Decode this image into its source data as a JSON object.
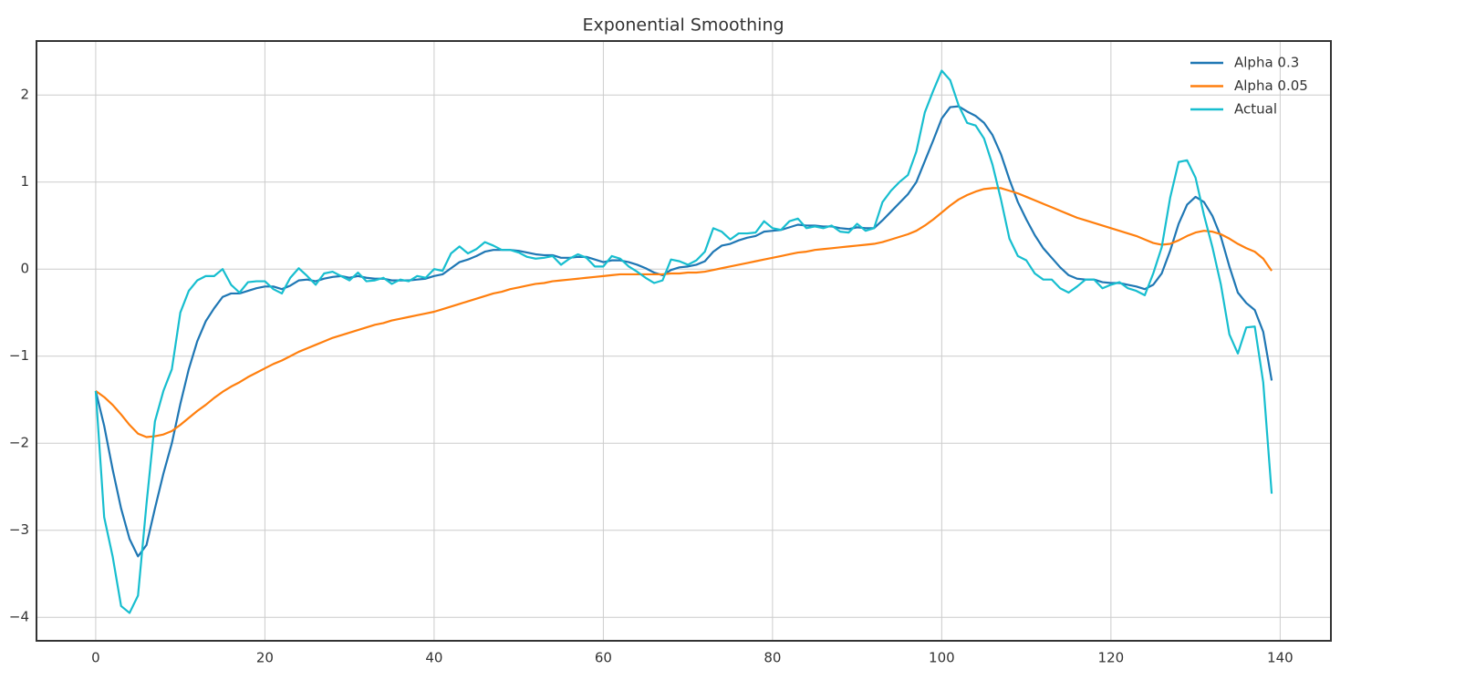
{
  "chart_data": {
    "type": "line",
    "title": "Exponential Smoothing",
    "x": [
      0,
      1,
      2,
      3,
      4,
      5,
      6,
      7,
      8,
      9,
      10,
      11,
      12,
      13,
      14,
      15,
      16,
      17,
      18,
      19,
      20,
      21,
      22,
      23,
      24,
      25,
      26,
      27,
      28,
      29,
      30,
      31,
      32,
      33,
      34,
      35,
      36,
      37,
      38,
      39,
      40,
      41,
      42,
      43,
      44,
      45,
      46,
      47,
      48,
      49,
      50,
      51,
      52,
      53,
      54,
      55,
      56,
      57,
      58,
      59,
      60,
      61,
      62,
      63,
      64,
      65,
      66,
      67,
      68,
      69,
      70,
      71,
      72,
      73,
      74,
      75,
      76,
      77,
      78,
      79,
      80,
      81,
      82,
      83,
      84,
      85,
      86,
      87,
      88,
      89,
      90,
      91,
      92,
      93,
      94,
      95,
      96,
      97,
      98,
      99,
      100,
      101,
      102,
      103,
      104,
      105,
      106,
      107,
      108,
      109,
      110,
      111,
      112,
      113,
      114,
      115,
      116,
      117,
      118,
      119,
      120,
      121,
      122,
      123,
      124,
      125,
      126,
      127,
      128,
      129,
      130,
      131,
      132,
      133,
      134,
      135,
      136,
      137,
      138,
      139
    ],
    "series": [
      {
        "name": "Alpha 0.3",
        "color": "#1f77b4",
        "values": [
          -1.4,
          -1.8,
          -2.3,
          -2.75,
          -3.1,
          -3.3,
          -3.17,
          -2.75,
          -2.35,
          -2.0,
          -1.55,
          -1.15,
          -0.83,
          -0.6,
          -0.45,
          -0.32,
          -0.28,
          -0.28,
          -0.25,
          -0.22,
          -0.2,
          -0.2,
          -0.23,
          -0.19,
          -0.13,
          -0.12,
          -0.14,
          -0.11,
          -0.09,
          -0.08,
          -0.1,
          -0.08,
          -0.1,
          -0.11,
          -0.11,
          -0.13,
          -0.13,
          -0.13,
          -0.12,
          -0.11,
          -0.08,
          -0.06,
          0.01,
          0.08,
          0.11,
          0.15,
          0.2,
          0.22,
          0.22,
          0.22,
          0.21,
          0.19,
          0.17,
          0.16,
          0.16,
          0.13,
          0.13,
          0.14,
          0.14,
          0.11,
          0.08,
          0.1,
          0.1,
          0.08,
          0.05,
          0.01,
          -0.04,
          -0.07,
          -0.01,
          0.02,
          0.03,
          0.05,
          0.09,
          0.2,
          0.27,
          0.29,
          0.33,
          0.36,
          0.38,
          0.43,
          0.44,
          0.45,
          0.48,
          0.51,
          0.5,
          0.5,
          0.49,
          0.49,
          0.47,
          0.46,
          0.48,
          0.47,
          0.47,
          0.56,
          0.66,
          0.76,
          0.86,
          1.0,
          1.24,
          1.48,
          1.73,
          1.86,
          1.87,
          1.81,
          1.76,
          1.68,
          1.54,
          1.32,
          1.03,
          0.77,
          0.57,
          0.39,
          0.24,
          0.13,
          0.02,
          -0.07,
          -0.11,
          -0.12,
          -0.12,
          -0.15,
          -0.16,
          -0.16,
          -0.18,
          -0.2,
          -0.23,
          -0.18,
          -0.05,
          0.21,
          0.52,
          0.74,
          0.83,
          0.77,
          0.61,
          0.37,
          0.03,
          -0.27,
          -0.39,
          -0.47,
          -0.72,
          -1.28
        ]
      },
      {
        "name": "Alpha 0.05",
        "color": "#ff7f0e",
        "values": [
          -1.4,
          -1.47,
          -1.56,
          -1.67,
          -1.79,
          -1.89,
          -1.93,
          -1.92,
          -1.9,
          -1.86,
          -1.79,
          -1.71,
          -1.63,
          -1.56,
          -1.48,
          -1.41,
          -1.35,
          -1.3,
          -1.24,
          -1.19,
          -1.14,
          -1.09,
          -1.05,
          -1.0,
          -0.95,
          -0.91,
          -0.87,
          -0.83,
          -0.79,
          -0.76,
          -0.73,
          -0.7,
          -0.67,
          -0.64,
          -0.62,
          -0.59,
          -0.57,
          -0.55,
          -0.53,
          -0.51,
          -0.49,
          -0.46,
          -0.43,
          -0.4,
          -0.37,
          -0.34,
          -0.31,
          -0.28,
          -0.26,
          -0.23,
          -0.21,
          -0.19,
          -0.17,
          -0.16,
          -0.14,
          -0.13,
          -0.12,
          -0.11,
          -0.1,
          -0.09,
          -0.08,
          -0.07,
          -0.06,
          -0.06,
          -0.06,
          -0.06,
          -0.06,
          -0.06,
          -0.05,
          -0.05,
          -0.04,
          -0.04,
          -0.03,
          -0.01,
          0.01,
          0.03,
          0.05,
          0.07,
          0.09,
          0.11,
          0.13,
          0.15,
          0.17,
          0.19,
          0.2,
          0.22,
          0.23,
          0.24,
          0.25,
          0.26,
          0.27,
          0.28,
          0.29,
          0.31,
          0.34,
          0.37,
          0.4,
          0.44,
          0.5,
          0.57,
          0.65,
          0.73,
          0.8,
          0.85,
          0.89,
          0.92,
          0.93,
          0.93,
          0.9,
          0.87,
          0.83,
          0.79,
          0.75,
          0.71,
          0.67,
          0.63,
          0.59,
          0.56,
          0.53,
          0.5,
          0.47,
          0.44,
          0.41,
          0.38,
          0.34,
          0.3,
          0.28,
          0.29,
          0.33,
          0.38,
          0.42,
          0.44,
          0.43,
          0.4,
          0.35,
          0.29,
          0.24,
          0.2,
          0.12,
          -0.02
        ]
      },
      {
        "name": "Actual",
        "color": "#17becf",
        "values": [
          -1.4,
          -2.85,
          -3.3,
          -3.87,
          -3.95,
          -3.75,
          -2.7,
          -1.75,
          -1.4,
          -1.15,
          -0.5,
          -0.25,
          -0.13,
          -0.08,
          -0.08,
          0.0,
          -0.18,
          -0.27,
          -0.15,
          -0.14,
          -0.14,
          -0.23,
          -0.28,
          -0.1,
          0.01,
          -0.08,
          -0.18,
          -0.05,
          -0.03,
          -0.08,
          -0.13,
          -0.04,
          -0.14,
          -0.13,
          -0.1,
          -0.17,
          -0.12,
          -0.14,
          -0.08,
          -0.1,
          0.0,
          -0.02,
          0.18,
          0.26,
          0.18,
          0.23,
          0.31,
          0.27,
          0.22,
          0.22,
          0.19,
          0.14,
          0.12,
          0.13,
          0.15,
          0.05,
          0.12,
          0.17,
          0.13,
          0.03,
          0.03,
          0.15,
          0.12,
          0.03,
          -0.03,
          -0.1,
          -0.16,
          -0.13,
          0.11,
          0.09,
          0.05,
          0.1,
          0.2,
          0.47,
          0.43,
          0.34,
          0.41,
          0.41,
          0.42,
          0.55,
          0.47,
          0.45,
          0.55,
          0.58,
          0.47,
          0.49,
          0.47,
          0.5,
          0.43,
          0.42,
          0.52,
          0.44,
          0.47,
          0.77,
          0.9,
          1.0,
          1.08,
          1.35,
          1.8,
          2.05,
          2.28,
          2.17,
          1.88,
          1.68,
          1.65,
          1.5,
          1.2,
          0.8,
          0.35,
          0.15,
          0.1,
          -0.05,
          -0.12,
          -0.12,
          -0.22,
          -0.27,
          -0.2,
          -0.12,
          -0.12,
          -0.22,
          -0.18,
          -0.15,
          -0.22,
          -0.25,
          -0.3,
          -0.05,
          0.25,
          0.82,
          1.23,
          1.25,
          1.05,
          0.62,
          0.25,
          -0.18,
          -0.75,
          -0.97,
          -0.67,
          -0.66,
          -1.3,
          -2.58
        ]
      }
    ],
    "xlim": [
      -7,
      146
    ],
    "ylim": [
      -4.27,
      2.62
    ],
    "xticks": [
      0,
      20,
      40,
      60,
      80,
      100,
      120,
      140
    ],
    "yticks": [
      {
        "value": -4,
        "label": "−4"
      },
      {
        "value": -3,
        "label": "−3"
      },
      {
        "value": -2,
        "label": "−2"
      },
      {
        "value": -1,
        "label": "−1"
      },
      0,
      1,
      2
    ],
    "grid": true,
    "legend": "upper right"
  }
}
